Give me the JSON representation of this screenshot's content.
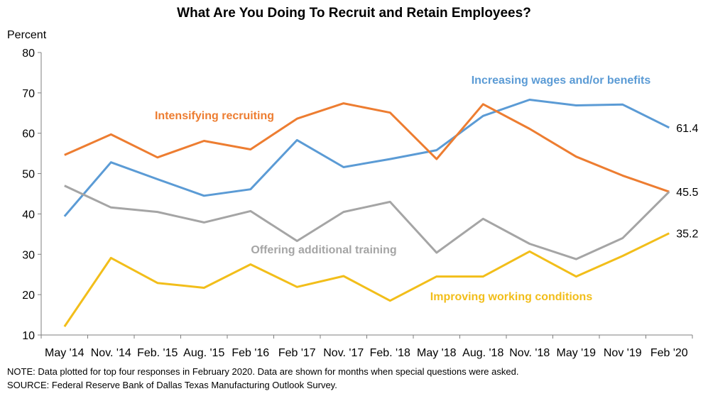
{
  "chart_data": {
    "type": "line",
    "title": "What Are You Doing To Recruit and Retain Employees?",
    "ylabel": "Percent",
    "xlabel": "",
    "ylim": [
      10,
      80
    ],
    "yticks": [
      10,
      20,
      30,
      40,
      50,
      60,
      70,
      80
    ],
    "categories": [
      "May '14",
      "Nov. '14",
      "Feb. '15",
      "Aug. '15",
      "Feb '16",
      "Feb '17",
      "Nov. '17",
      "Feb. '18",
      "May '18",
      "Aug. '18",
      "Nov. '18",
      "May '19",
      "Nov '19",
      "Feb '20"
    ],
    "grid": false,
    "legend": "inline labels",
    "series": [
      {
        "name": "Increasing wages and/or benefits",
        "color": "#5B9BD5",
        "values": [
          39.4,
          52.8,
          48.6,
          44.5,
          46.1,
          58.3,
          51.6,
          53.6,
          55.8,
          64.3,
          68.3,
          66.9,
          67.1,
          61.4
        ],
        "end_label": "61.4"
      },
      {
        "name": "Intensifying recruiting",
        "color": "#ED7D31",
        "values": [
          54.6,
          59.7,
          54.0,
          58.1,
          56.0,
          63.6,
          67.4,
          65.1,
          53.6,
          67.2,
          61.1,
          54.2,
          49.5,
          45.5
        ],
        "end_label": "45.5"
      },
      {
        "name": "Offering additional training",
        "color": "#A5A5A5",
        "values": [
          47.0,
          41.6,
          40.5,
          37.9,
          40.7,
          33.3,
          40.5,
          43.0,
          30.4,
          38.8,
          32.6,
          28.8,
          34.0,
          45.5
        ],
        "end_label": ""
      },
      {
        "name": "Improving working conditions",
        "color": "#F2BE1A",
        "values": [
          12.1,
          29.1,
          22.9,
          21.7,
          27.5,
          21.9,
          24.6,
          18.5,
          24.5,
          24.5,
          30.7,
          24.5,
          29.6,
          35.2
        ],
        "end_label": "35.2"
      }
    ]
  },
  "notes": {
    "note": "NOTE: Data plotted for top four responses in February 2020. Data are shown for months when special questions were asked.",
    "source": "SOURCE: Federal Reserve Bank of Dallas Texas Manufacturing Outlook Survey."
  }
}
